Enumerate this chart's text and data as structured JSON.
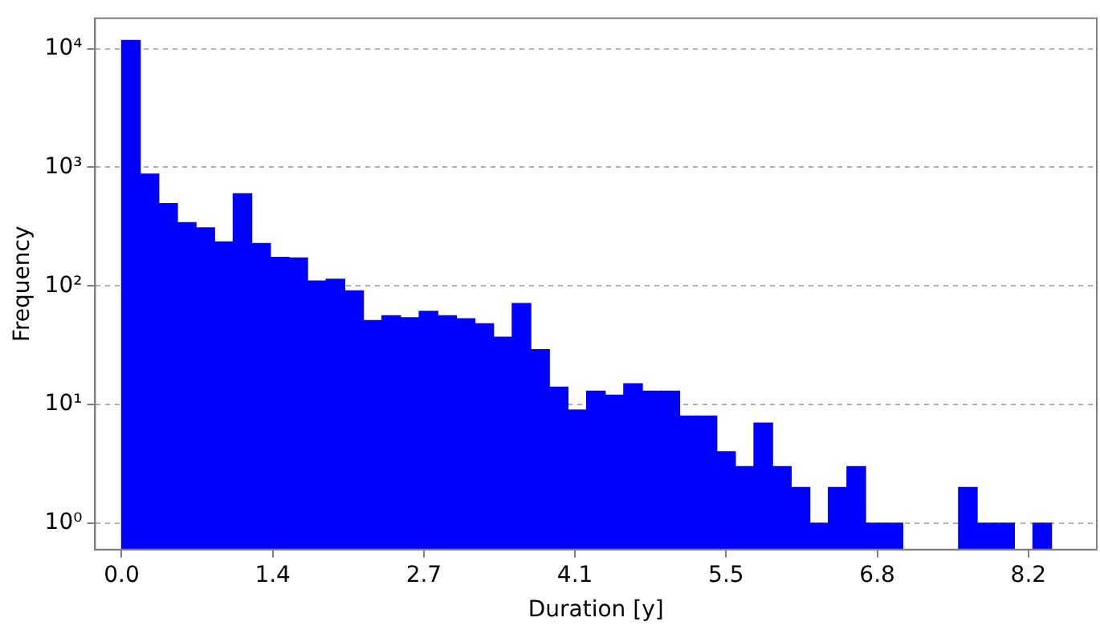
{
  "chart_data": {
    "type": "histogram",
    "xlabel": "Duration [y]",
    "ylabel": "Frequency",
    "color": "#0000ff",
    "log": "y",
    "grid": "y",
    "legend": false,
    "bins": [
      0,
      0.169,
      0.337,
      0.506,
      0.674,
      0.843,
      1.012,
      1.18,
      1.349,
      1.517,
      1.686,
      1.855,
      2.023,
      2.192,
      2.36,
      2.529,
      2.698,
      2.866,
      3.035,
      3.203,
      3.372,
      3.541,
      3.709,
      3.878,
      4.046,
      4.215,
      4.384,
      4.552,
      4.721,
      4.889,
      5.058,
      5.227,
      5.395,
      5.564,
      5.732,
      5.901,
      6.07,
      6.238,
      6.407,
      6.575,
      6.744,
      6.913,
      7.081,
      7.25,
      7.418,
      7.587,
      7.756,
      7.924,
      8.093,
      8.261,
      8.43
    ],
    "values": [
      11700,
      875,
      494,
      341,
      308,
      235,
      598,
      228,
      174,
      172,
      110,
      114,
      91,
      51,
      56,
      54,
      61,
      56,
      53,
      48,
      37,
      71,
      29,
      14,
      9,
      13,
      12,
      15,
      13,
      13,
      8,
      8,
      4,
      3,
      7,
      3,
      2,
      1,
      2,
      3,
      1,
      1,
      null,
      null,
      null,
      2,
      1,
      1,
      null,
      1
    ],
    "xlim": [
      -0.24,
      8.84
    ],
    "xticks": [
      {
        "value": 0,
        "label": "0.0"
      },
      {
        "value": 1.37,
        "label": "1.4"
      },
      {
        "value": 2.74,
        "label": "2.7"
      },
      {
        "value": 4.11,
        "label": "4.1"
      },
      {
        "value": 5.48,
        "label": "5.5"
      },
      {
        "value": 6.85,
        "label": "6.8"
      },
      {
        "value": 8.22,
        "label": "8.2"
      }
    ],
    "ylim": [
      0.64,
      18000
    ],
    "yticks": [
      {
        "value": 1,
        "label": "10⁰"
      },
      {
        "value": 10,
        "label": "10¹"
      },
      {
        "value": 100,
        "label": "10²"
      },
      {
        "value": 1000,
        "label": "10³"
      },
      {
        "value": 10000,
        "label": "10⁴"
      }
    ]
  }
}
